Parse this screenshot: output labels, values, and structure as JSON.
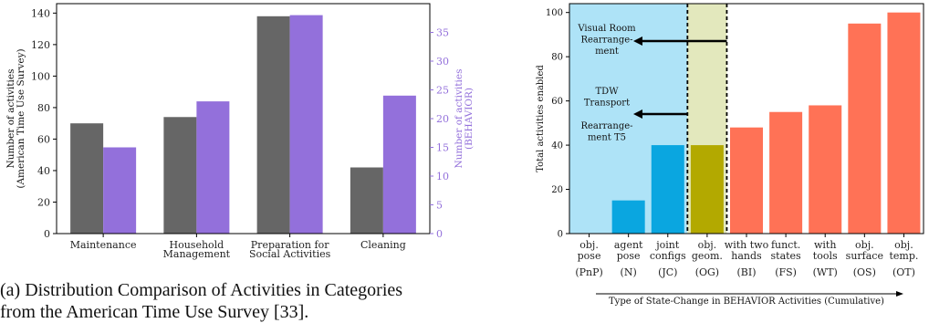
{
  "caption": {
    "line1": "(a) Distribution Comparison of Activities in Categories",
    "line2": "from the American Time Use Survey [33]."
  },
  "colors": {
    "atus": "#666666",
    "behavior": "#9370db",
    "pnp_bg": "#aee3f7",
    "og_bg": "#e3e8bd",
    "blue_bar": "#0aa6e0",
    "olive_bar": "#b3a900",
    "coral_bar": "#ff7256"
  },
  "chart_data": [
    {
      "type": "bar",
      "categories": [
        [
          "Maintenance"
        ],
        [
          "Household",
          "Management"
        ],
        [
          "Preparation for",
          "Social Activities"
        ],
        [
          "Cleaning"
        ]
      ],
      "series": [
        {
          "values": [
            70,
            74,
            138,
            42
          ],
          "axis": "left"
        },
        {
          "values": [
            15,
            23,
            38,
            24
          ],
          "axis": "right"
        }
      ],
      "ylabel_left": [
        "Number of activities",
        "(American Time Use Survey)"
      ],
      "ylabel_right": [
        "Number of activities",
        "(BEHAVIOR)"
      ],
      "ylim_left": [
        0,
        146
      ],
      "yticks_left": [
        0,
        20,
        40,
        60,
        80,
        100,
        120,
        140
      ],
      "ylim_right": [
        0,
        40
      ],
      "yticks_right": [
        0,
        5,
        10,
        15,
        20,
        25,
        30,
        35
      ],
      "grid": false
    },
    {
      "type": "bar",
      "categories": [
        {
          "l1": "obj.",
          "l2": "pose",
          "code": "(PnP)"
        },
        {
          "l1": "agent",
          "l2": "pose",
          "code": "(N)"
        },
        {
          "l1": "joint",
          "l2": "configs",
          "code": "(JC)"
        },
        {
          "l1": "obj.",
          "l2": "geom.",
          "code": "(OG)"
        },
        {
          "l1": "with two",
          "l2": "hands",
          "code": "(BI)"
        },
        {
          "l1": "funct.",
          "l2": "states",
          "code": "(FS)"
        },
        {
          "l1": "with",
          "l2": "tools",
          "code": "(WT)"
        },
        {
          "l1": "obj.",
          "l2": "surface",
          "code": "(OS)"
        },
        {
          "l1": "obj.",
          "l2": "temp.",
          "code": "(OT)"
        }
      ],
      "values": [
        0,
        15,
        40,
        40,
        48,
        55,
        58,
        95,
        100
      ],
      "ylabel": "Total activities enabled",
      "xlabel": "Type of State-Change in BEHAVIOR Activities (Cumulative)",
      "ylim": [
        0,
        104
      ],
      "yticks": [
        0,
        20,
        40,
        60,
        80,
        100
      ],
      "grid": false,
      "annotations": [
        {
          "lines": [
            "Visual Room",
            "Rearrange-",
            "ment"
          ]
        },
        {
          "lines": [
            "TDW",
            "Transport"
          ]
        },
        {
          "lines": [
            "Rearrange-",
            "ment T5"
          ]
        }
      ]
    }
  ]
}
